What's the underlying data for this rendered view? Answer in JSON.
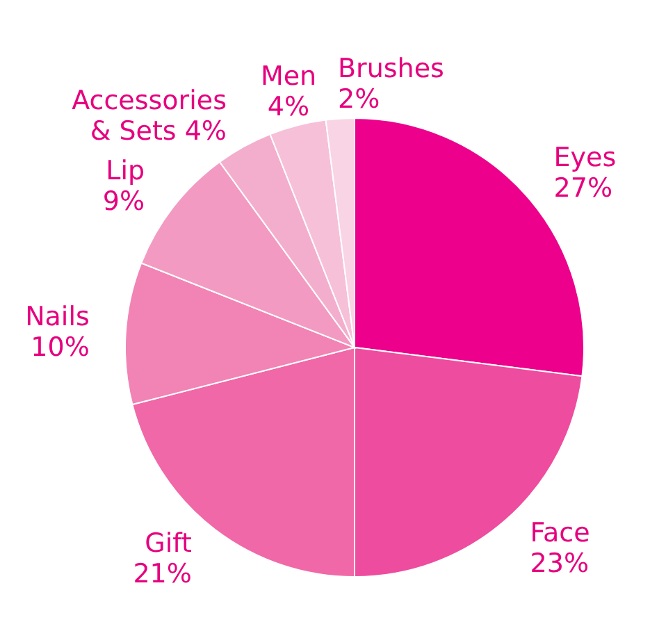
{
  "chart_data": {
    "type": "pie",
    "categories": [
      "Eyes",
      "Face",
      "Gift",
      "Nails",
      "Lip",
      "Accessories & Sets",
      "Men",
      "Brushes"
    ],
    "values": [
      27,
      23,
      21,
      10,
      9,
      4,
      4,
      2
    ],
    "value_labels": [
      "27%",
      "23%",
      "21%",
      "10%",
      "9%",
      "4%",
      "4%",
      "2%"
    ],
    "colors": [
      "#ec008c",
      "#ee4c9e",
      "#f068a8",
      "#f283b5",
      "#f39ac2",
      "#f4aecd",
      "#f6c0d9",
      "#f8d4e4"
    ],
    "legend": false
  }
}
